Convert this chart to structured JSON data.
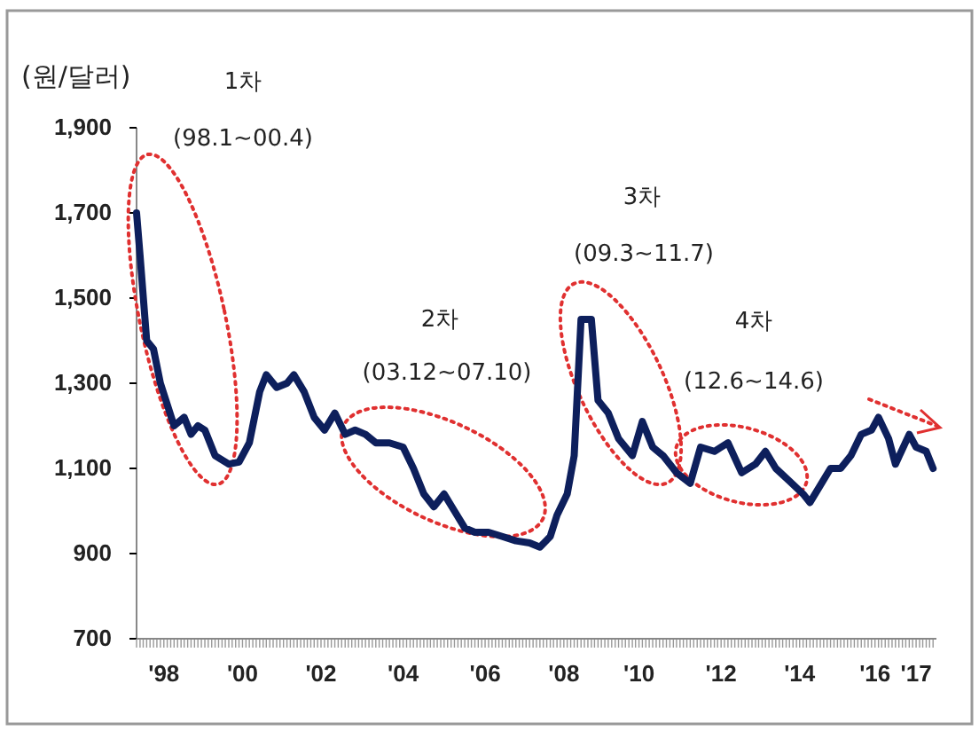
{
  "chart_data": {
    "type": "line",
    "ylabel": "(원/달러)",
    "annotations": [
      "1차",
      "(98.1~00.4)",
      "2차",
      "(03.12~07.10)",
      "3차",
      "(09.3~11.7)",
      "4차",
      "(12.6~14.6)"
    ],
    "x": [
      "1998-01",
      "1998-02",
      "1998-04",
      "1998-06",
      "1998-08",
      "1998-10",
      "1998-12",
      "1999-03",
      "1999-05",
      "1999-07",
      "1999-09",
      "1999-12",
      "2000-04",
      "2000-07",
      "2000-10",
      "2001-01",
      "2001-03",
      "2001-06",
      "2001-09",
      "2001-11",
      "2002-02",
      "2002-05",
      "2002-08",
      "2002-11",
      "2003-02",
      "2003-05",
      "2003-08",
      "2003-11",
      "2004-03",
      "2004-07",
      "2004-10",
      "2005-01",
      "2005-04",
      "2005-07",
      "2005-10",
      "2006-01",
      "2006-04",
      "2006-08",
      "2006-12",
      "2007-04",
      "2007-08",
      "2007-11",
      "2008-02",
      "2008-04",
      "2008-07",
      "2008-09",
      "2008-11",
      "2009-02",
      "2009-04",
      "2009-07",
      "2009-10",
      "2010-02",
      "2010-05",
      "2010-08",
      "2010-11",
      "2011-03",
      "2011-07",
      "2011-10",
      "2012-02",
      "2012-06",
      "2012-10",
      "2013-02",
      "2013-05",
      "2013-08",
      "2013-12",
      "2014-04",
      "2014-06",
      "2014-09",
      "2014-12",
      "2015-03",
      "2015-06",
      "2015-09",
      "2015-12",
      "2016-02",
      "2016-05",
      "2016-07",
      "2016-11",
      "2017-01",
      "2017-04",
      "2017-06"
    ],
    "series": [
      {
        "color": "#0d1f5c",
        "values": [
          1700,
          1600,
          1400,
          1380,
          1300,
          1250,
          1200,
          1220,
          1180,
          1200,
          1190,
          1130,
          1110,
          1115,
          1160,
          1280,
          1320,
          1290,
          1300,
          1320,
          1280,
          1220,
          1190,
          1230,
          1180,
          1190,
          1180,
          1160,
          1160,
          1150,
          1100,
          1040,
          1010,
          1040,
          1000,
          960,
          950,
          950,
          940,
          930,
          925,
          915,
          940,
          990,
          1040,
          1130,
          1450,
          1450,
          1260,
          1230,
          1170,
          1130,
          1210,
          1150,
          1130,
          1090,
          1065,
          1150,
          1140,
          1160,
          1090,
          1110,
          1140,
          1100,
          1070,
          1040,
          1020,
          1060,
          1100,
          1100,
          1130,
          1180,
          1190,
          1220,
          1170,
          1110,
          1180,
          1150,
          1140,
          1100
        ]
      }
    ],
    "xlim": [
      "1998-01",
      "2017-07"
    ],
    "xticks": [
      {
        "value": "1998-09",
        "label": "'98"
      },
      {
        "value": "2000-08",
        "label": "'00"
      },
      {
        "value": "2002-07",
        "label": "'02"
      },
      {
        "value": "2004-07",
        "label": "'04"
      },
      {
        "value": "2006-07",
        "label": "'06"
      },
      {
        "value": "2008-06",
        "label": "'08"
      },
      {
        "value": "2010-04",
        "label": "'10"
      },
      {
        "value": "2012-04",
        "label": "'12"
      },
      {
        "value": "2014-03",
        "label": "'14"
      },
      {
        "value": "2016-01",
        "label": "'16"
      },
      {
        "value": "2017-01",
        "label": "'17"
      }
    ],
    "ylim": [
      700,
      1900
    ],
    "yticks": [
      {
        "value": 700,
        "label": "700"
      },
      {
        "value": 900,
        "label": "900"
      },
      {
        "value": 1100,
        "label": "1,100"
      },
      {
        "value": 1300,
        "label": "1,300"
      },
      {
        "value": 1500,
        "label": "1,500"
      },
      {
        "value": 1700,
        "label": "1,700"
      },
      {
        "value": 1900,
        "label": "1,900"
      }
    ],
    "grid": false,
    "line_style": "solid"
  }
}
